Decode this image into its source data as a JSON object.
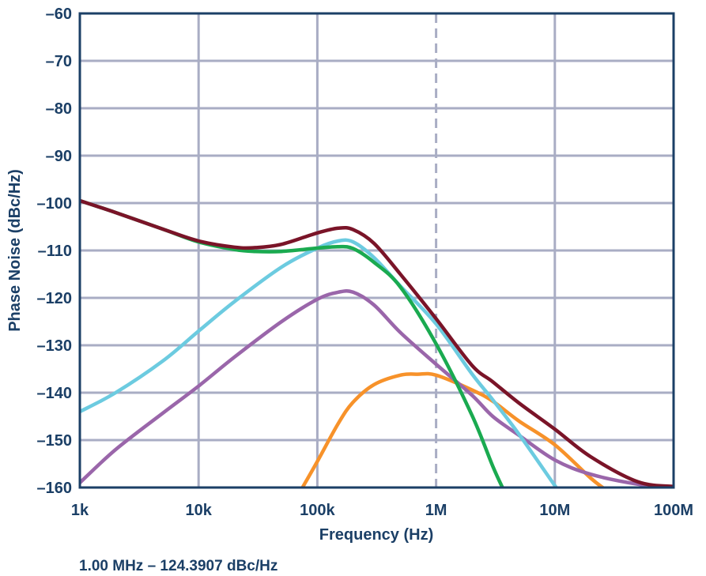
{
  "chart_data": {
    "type": "line",
    "title": "",
    "xlabel": "Frequency (Hz)",
    "ylabel": "Phase Noise (dBc/Hz)",
    "xscale": "log",
    "xlim": [
      1000,
      100000000
    ],
    "ylim": [
      -160,
      -60
    ],
    "grid": true,
    "x_ticks": [
      1000,
      10000,
      100000,
      1000000,
      10000000,
      100000000
    ],
    "x_tick_labels": [
      "1k",
      "10k",
      "100k",
      "1M",
      "10M",
      "100M"
    ],
    "y_ticks": [
      -60,
      -70,
      -80,
      -90,
      -100,
      -110,
      -120,
      -130,
      -140,
      -150,
      -160
    ],
    "y_tick_labels": [
      "–60",
      "–70",
      "–80",
      "–90",
      "–100",
      "–110",
      "–120",
      "–130",
      "–140",
      "–150",
      "–160"
    ],
    "marker_line": {
      "x": 1000000,
      "style": "dashed"
    },
    "annotation": "1.00 MHz – 124.3907 dBc/Hz",
    "colors": {
      "axis": "#1b3f66",
      "grid": "#a9adc4"
    },
    "series": [
      {
        "color": "#f7922a",
        "x": [
          75000,
          100000,
          150000,
          200000,
          300000,
          500000,
          700000,
          1000000,
          2000000,
          3000000,
          5000000,
          10000000,
          20000000,
          27000000
        ],
        "y": [
          -160,
          -154.5,
          -146.5,
          -142,
          -138.3,
          -136.3,
          -136.1,
          -136.3,
          -139.4,
          -141.8,
          -146,
          -151,
          -158,
          -160.5
        ]
      },
      {
        "color": "#9a66aa",
        "x": [
          1000,
          2000,
          5000,
          10000,
          20000,
          50000,
          100000,
          150000,
          200000,
          300000,
          500000,
          1000000,
          2000000,
          3000000,
          5000000,
          10000000,
          20000000,
          50000000,
          100000000
        ],
        "y": [
          -159,
          -152,
          -144.3,
          -138.6,
          -132.5,
          -125,
          -120.3,
          -118.8,
          -118.8,
          -121.5,
          -127.3,
          -134,
          -140.5,
          -145,
          -149,
          -154.2,
          -157.2,
          -159.3,
          -160
        ]
      },
      {
        "color": "#6ccbe0",
        "x": [
          1000,
          2000,
          5000,
          10000,
          20000,
          50000,
          100000,
          150000,
          200000,
          300000,
          500000,
          1000000,
          2000000,
          3000000,
          5000000,
          10000000,
          11000000
        ],
        "y": [
          -144,
          -140,
          -133.3,
          -127,
          -120.8,
          -113.5,
          -109.5,
          -108,
          -108.2,
          -111.5,
          -117.5,
          -125.5,
          -136,
          -141.5,
          -148.8,
          -159.6,
          -161
        ]
      },
      {
        "color": "#1aaa50",
        "x": [
          1000,
          2000,
          5000,
          10000,
          20000,
          30000,
          50000,
          100000,
          150000,
          200000,
          300000,
          500000,
          1000000,
          2000000,
          3000000,
          3700000
        ],
        "y": [
          -99.5,
          -102,
          -105.5,
          -108.2,
          -109.8,
          -110.2,
          -110.2,
          -109.5,
          -109.2,
          -109.6,
          -112.5,
          -117.7,
          -129.7,
          -144.7,
          -155.5,
          -160.5
        ]
      },
      {
        "color": "#7a1428",
        "x": [
          1000,
          2000,
          5000,
          10000,
          20000,
          30000,
          50000,
          100000,
          150000,
          200000,
          300000,
          500000,
          1000000,
          2000000,
          3000000,
          5000000,
          10000000,
          20000000,
          50000000,
          100000000
        ],
        "y": [
          -99.5,
          -102,
          -105.5,
          -108,
          -109.3,
          -109.4,
          -108.7,
          -106.3,
          -105.3,
          -105.6,
          -108.5,
          -115,
          -124.4,
          -134.2,
          -137.7,
          -142.2,
          -147.7,
          -153.5,
          -158.8,
          -159.8
        ]
      }
    ]
  }
}
